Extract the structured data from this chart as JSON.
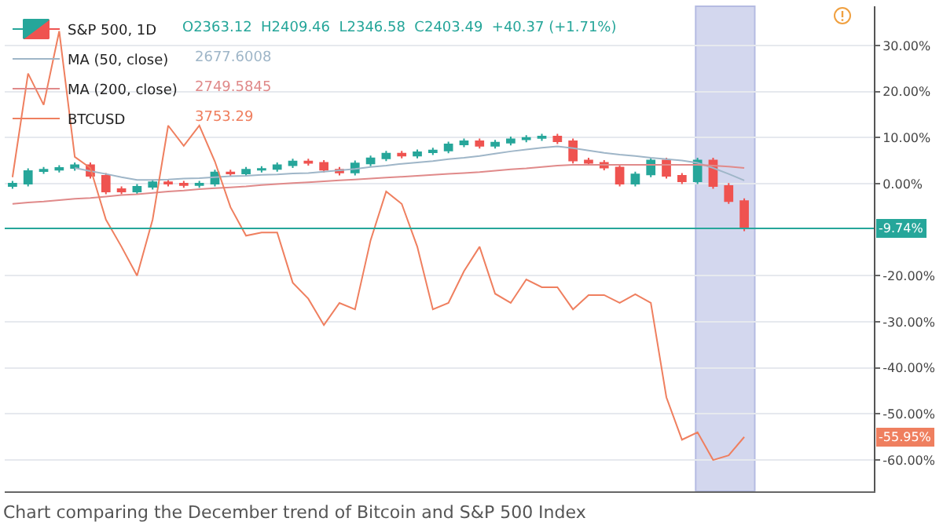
{
  "chart_data": {
    "type": "candlestick",
    "categories": [
      null,
      null,
      null,
      null,
      null,
      null,
      null,
      null,
      null,
      null,
      null,
      null,
      null,
      null,
      null,
      null,
      null,
      null,
      null,
      null,
      null,
      null,
      null,
      null,
      null,
      null,
      null,
      null,
      null,
      null,
      null,
      null,
      null,
      null,
      null,
      null,
      null,
      null,
      null,
      null,
      null,
      null,
      null,
      null,
      null,
      null,
      null,
      null
    ],
    "annotations": [
      "O2363.12  H2409.46  L2346.58  C2403.49  +40.37 (+1.71%)",
      "2677.6008",
      "2749.5845",
      "3753.29",
      "Chart comparing the December trend of Bitcoin and S&P 500 Index",
      "-55.95%"
    ],
    "ylim": [
      -66.8,
      38.5
    ],
    "yticks": [
      {
        "value": 30,
        "label": "30.00%"
      },
      {
        "value": 20,
        "label": "20.00%"
      },
      {
        "value": 10,
        "label": "10.00%"
      },
      {
        "value": 0,
        "label": "0.00%"
      },
      {
        "value": -20,
        "label": "-20.00%"
      },
      {
        "value": -30,
        "label": "-30.00%"
      },
      {
        "value": -40,
        "label": "-40.00%"
      },
      {
        "value": -50,
        "label": "-50.00%"
      },
      {
        "value": -60,
        "label": "-60.00%"
      }
    ],
    "tick_labels": "y",
    "grid": "y",
    "legend": "top left",
    "ref_lines": [
      {
        "axis": "y",
        "value": -9.74,
        "label": "-9.74%",
        "color": "#26a69a"
      }
    ],
    "series": [
      {
        "name": "S&P 500, 1D",
        "ohlc": [
          [
            -0.5,
            0.6,
            -1.1,
            0
          ],
          [
            0,
            3.3,
            -0.6,
            2.7
          ],
          [
            2.7,
            3.6,
            2.1,
            3
          ],
          [
            3,
            4,
            2.4,
            3.4
          ],
          [
            3.4,
            4.6,
            2.8,
            4
          ],
          [
            4,
            4.6,
            1.1,
            1.7
          ],
          [
            1.7,
            2.3,
            -2.3,
            -1.7
          ],
          [
            -1.2,
            -0.6,
            -2.3,
            -1.7
          ],
          [
            -1.7,
            -0.1,
            -2.3,
            -0.7
          ],
          [
            -0.7,
            0.9,
            -1.3,
            0.3
          ],
          [
            0.3,
            0.9,
            -0.6,
            0
          ],
          [
            0,
            0.6,
            -0.9,
            -0.3
          ],
          [
            -0.3,
            0.6,
            -0.9,
            0
          ],
          [
            0,
            3,
            -0.6,
            2.4
          ],
          [
            2.4,
            3,
            1.6,
            2.2
          ],
          [
            2.2,
            3.6,
            1.6,
            3
          ],
          [
            3,
            3.8,
            2.4,
            3.2
          ],
          [
            3.2,
            4.6,
            2.6,
            4
          ],
          [
            4,
            5.4,
            3.4,
            4.8
          ],
          [
            4.8,
            5.4,
            3.9,
            4.5
          ],
          [
            4.5,
            5.1,
            2.4,
            3
          ],
          [
            3,
            3.6,
            1.8,
            2.4
          ],
          [
            2.4,
            5,
            1.8,
            4.4
          ],
          [
            4.4,
            6.1,
            3.8,
            5.5
          ],
          [
            5.5,
            7.1,
            4.9,
            6.5
          ],
          [
            6.5,
            7.1,
            5.5,
            6.1
          ],
          [
            6.1,
            7.4,
            5.5,
            6.8
          ],
          [
            6.8,
            7.8,
            6.2,
            7.2
          ],
          [
            7.2,
            9.1,
            6.6,
            8.5
          ],
          [
            8.5,
            9.8,
            7.9,
            9.2
          ],
          [
            9.2,
            9.8,
            7.6,
            8.2
          ],
          [
            8.2,
            9.5,
            7.6,
            8.9
          ],
          [
            8.9,
            10.2,
            8.3,
            9.6
          ],
          [
            9.6,
            10.5,
            9,
            9.9
          ],
          [
            9.9,
            10.8,
            9.3,
            10.2
          ],
          [
            10.2,
            10.8,
            8.6,
            9.2
          ],
          [
            9.2,
            9.8,
            4.4,
            5
          ],
          [
            5,
            5.6,
            3.9,
            4.5
          ],
          [
            4.5,
            5.1,
            2.9,
            3.5
          ],
          [
            3.5,
            4.1,
            -0.6,
            0
          ],
          [
            0,
            2.6,
            -0.6,
            2
          ],
          [
            2,
            5.6,
            1.4,
            5
          ],
          [
            5,
            5.6,
            1.1,
            1.7
          ],
          [
            1.7,
            2.3,
            -0.1,
            0.5
          ],
          [
            0.5,
            5.6,
            -0.1,
            5
          ],
          [
            5,
            5.6,
            -1.1,
            -0.5
          ],
          [
            -0.5,
            0.1,
            -4.4,
            -3.8
          ],
          [
            -3.8,
            -3.2,
            -10.3,
            -9.74
          ]
        ]
      },
      {
        "type": "line",
        "name": "MA (50, close)",
        "color": "#9fb6c8",
        "values": [
          null,
          null,
          null,
          null,
          3.4,
          2.7,
          2.1,
          1.4,
          0.8,
          0.8,
          0.9,
          1.1,
          1.2,
          1.4,
          1.6,
          1.7,
          1.9,
          2,
          2.2,
          2.3,
          2.6,
          2.9,
          3.2,
          3.6,
          3.9,
          4.3,
          4.6,
          4.9,
          5.3,
          5.6,
          6,
          6.5,
          7,
          7.4,
          7.8,
          8.1,
          7.7,
          7.2,
          6.7,
          6.3,
          6,
          5.6,
          5.3,
          5,
          4.5,
          3.4,
          2.1,
          0.7
        ]
      },
      {
        "type": "line",
        "name": "MA (200, close)",
        "color": "#e08a8a",
        "values": [
          -4.4,
          -4.1,
          -3.9,
          -3.6,
          -3.3,
          -3.1,
          -2.8,
          -2.5,
          -2.3,
          -2,
          -1.7,
          -1.5,
          -1.2,
          -1,
          -0.8,
          -0.6,
          -0.3,
          -0.1,
          0.1,
          0.3,
          0.5,
          0.7,
          0.9,
          1.1,
          1.3,
          1.5,
          1.7,
          1.9,
          2.1,
          2.3,
          2.5,
          2.8,
          3.1,
          3.3,
          3.6,
          3.9,
          4.1,
          4.1,
          4.1,
          4.1,
          4.1,
          4.1,
          4.1,
          4.1,
          4.1,
          3.9,
          3.7,
          3.4
        ]
      },
      {
        "type": "line",
        "name": "BTCUSD",
        "color": "#ef7f5f",
        "values": [
          1.4,
          23.9,
          17.1,
          33.1,
          5.8,
          3.4,
          -7.8,
          -13.7,
          -20,
          -7.8,
          12.6,
          8.2,
          12.6,
          4.8,
          -5.1,
          -11.3,
          -10.6,
          -10.6,
          -21.5,
          -25,
          -30.7,
          -25.9,
          -27.3,
          -12.3,
          -1.7,
          -4.4,
          -13.7,
          -27.3,
          -25.9,
          -19,
          -13.7,
          -23.9,
          -25.9,
          -20.8,
          -22.5,
          -22.5,
          -27.3,
          -24.2,
          -24.2,
          -25.9,
          -24,
          -25.9,
          -46.4,
          -55.6,
          -54,
          -60,
          -59,
          -55
        ]
      }
    ]
  }
}
